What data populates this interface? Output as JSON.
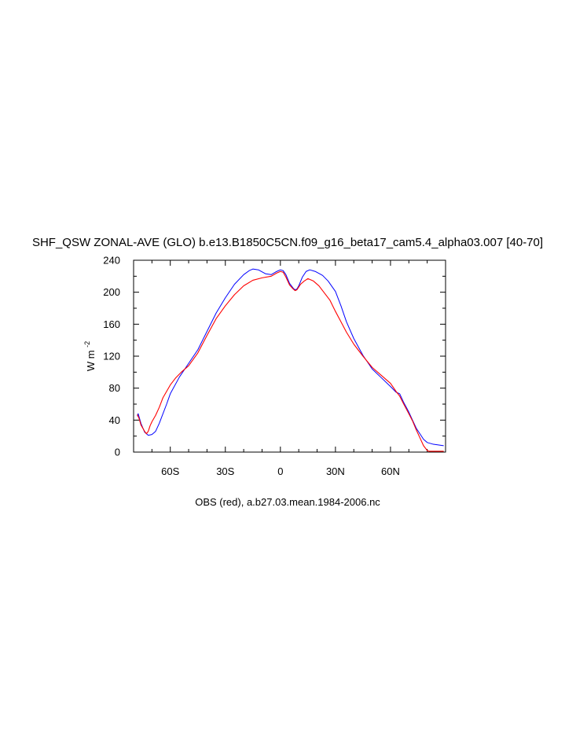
{
  "chart_data": {
    "type": "line",
    "title": "SHF_QSW ZONAL-AVE (GLO) b.e13.B1850C5CN.f09_g16_beta17_cam5.4_alpha03.007 [40-70]",
    "subtitle": "OBS (red), a.b27.03.mean.1984-2006.nc",
    "ylabel_main": "W m",
    "ylabel_superscript": "-2",
    "xlabel": "",
    "xlim": [
      -80,
      90
    ],
    "ylim": [
      0,
      240
    ],
    "x_ticks": [
      -60,
      -30,
      0,
      30,
      60
    ],
    "x_tick_labels": [
      "60S",
      "30S",
      "0",
      "30N",
      "60N"
    ],
    "y_ticks": [
      0,
      40,
      80,
      120,
      160,
      200,
      240
    ],
    "y_tick_labels": [
      "0",
      "40",
      "80",
      "120",
      "160",
      "200",
      "240"
    ],
    "grid": false,
    "series": [
      {
        "color": "#0000ff",
        "points": [
          [
            -78,
            45
          ],
          [
            -77.5,
            48
          ],
          [
            -76,
            36
          ],
          [
            -74,
            25
          ],
          [
            -72,
            21
          ],
          [
            -70,
            22
          ],
          [
            -68,
            26
          ],
          [
            -66,
            36
          ],
          [
            -65,
            42
          ],
          [
            -62,
            60
          ],
          [
            -60,
            73
          ],
          [
            -55,
            94
          ],
          [
            -50,
            111
          ],
          [
            -45,
            128
          ],
          [
            -40,
            151
          ],
          [
            -35,
            174
          ],
          [
            -30,
            193
          ],
          [
            -25,
            210
          ],
          [
            -20,
            222
          ],
          [
            -17,
            227
          ],
          [
            -15,
            229
          ],
          [
            -12,
            228
          ],
          [
            -8,
            223
          ],
          [
            -5,
            222
          ],
          [
            -2,
            226
          ],
          [
            0,
            228
          ],
          [
            1.5,
            227
          ],
          [
            3,
            222
          ],
          [
            5,
            211
          ],
          [
            7,
            205
          ],
          [
            8,
            203
          ],
          [
            9,
            204
          ],
          [
            10,
            208
          ],
          [
            12,
            219
          ],
          [
            14,
            226
          ],
          [
            16,
            228
          ],
          [
            19,
            226
          ],
          [
            23,
            221
          ],
          [
            26,
            214
          ],
          [
            30,
            201
          ],
          [
            33,
            183
          ],
          [
            36,
            163
          ],
          [
            40,
            142
          ],
          [
            45,
            121
          ],
          [
            50,
            104
          ],
          [
            55,
            93
          ],
          [
            60,
            82
          ],
          [
            63,
            75
          ],
          [
            65,
            73
          ],
          [
            67,
            63
          ],
          [
            70,
            50
          ],
          [
            72,
            40
          ],
          [
            74,
            30
          ],
          [
            76,
            23
          ],
          [
            78,
            16
          ],
          [
            80,
            12
          ],
          [
            83,
            10
          ],
          [
            86,
            9
          ],
          [
            89,
            8
          ]
        ]
      },
      {
        "color": "#ff0000",
        "points": [
          [
            -78,
            47
          ],
          [
            -77,
            42
          ],
          [
            -76,
            34
          ],
          [
            -74,
            26
          ],
          [
            -73,
            23
          ],
          [
            -72,
            26
          ],
          [
            -71,
            33
          ],
          [
            -70,
            38
          ],
          [
            -68,
            46
          ],
          [
            -66,
            56
          ],
          [
            -64,
            68
          ],
          [
            -62,
            76
          ],
          [
            -60,
            84
          ],
          [
            -57,
            93
          ],
          [
            -54,
            100
          ],
          [
            -50,
            108
          ],
          [
            -45,
            124
          ],
          [
            -40,
            146
          ],
          [
            -35,
            167
          ],
          [
            -30,
            183
          ],
          [
            -25,
            197
          ],
          [
            -20,
            208
          ],
          [
            -15,
            215
          ],
          [
            -10,
            218
          ],
          [
            -5,
            220
          ],
          [
            -2,
            224
          ],
          [
            0,
            226
          ],
          [
            1.5,
            225
          ],
          [
            3,
            219
          ],
          [
            5,
            209
          ],
          [
            7,
            204
          ],
          [
            8,
            202
          ],
          [
            9,
            203
          ],
          [
            11,
            210
          ],
          [
            13,
            214
          ],
          [
            15,
            217
          ],
          [
            18,
            214
          ],
          [
            21,
            208
          ],
          [
            24,
            199
          ],
          [
            27,
            190
          ],
          [
            30,
            176
          ],
          [
            33,
            163
          ],
          [
            36,
            150
          ],
          [
            40,
            135
          ],
          [
            45,
            120
          ],
          [
            50,
            106
          ],
          [
            55,
            96
          ],
          [
            60,
            86
          ],
          [
            63,
            76
          ],
          [
            65,
            70
          ],
          [
            67,
            61
          ],
          [
            70,
            48
          ],
          [
            72,
            39
          ],
          [
            74,
            28
          ],
          [
            76,
            18
          ],
          [
            78,
            8
          ],
          [
            80,
            2
          ],
          [
            81,
            1
          ],
          [
            85,
            1
          ],
          [
            89,
            1
          ]
        ]
      }
    ]
  }
}
